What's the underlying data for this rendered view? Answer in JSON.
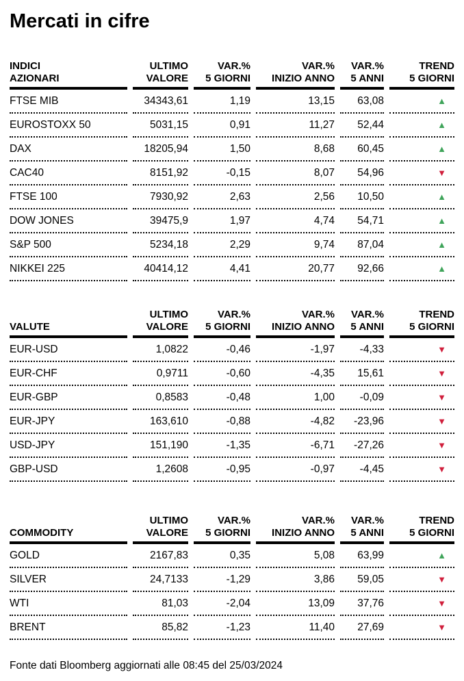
{
  "page": {
    "title": "Mercati in cifre",
    "footer": "Fonte dati Bloomberg aggiornati alle 08:45 del 25/03/2024"
  },
  "colors": {
    "up": "#3fa45a",
    "down": "#d01f3c"
  },
  "icons": {
    "trend_up": "▲",
    "trend_down": "▼"
  },
  "tables": [
    {
      "id": "indici-azionari",
      "header_line1": [
        "INDICI",
        "ULTIMO",
        "VAR.%",
        "VAR.%",
        "VAR.%",
        "TREND"
      ],
      "header_line2": [
        "AZIONARI",
        "VALORE",
        "5 GIORNI",
        "INIZIO ANNO",
        "5 ANNI",
        "5 GIORNI"
      ],
      "rows": [
        {
          "name": "FTSE MIB",
          "last": "34343,61",
          "var_5d": "1,19",
          "var_ytd": "13,15",
          "var_5y": "63,08",
          "trend": "up"
        },
        {
          "name": "EUROSTOXX 50",
          "last": "5031,15",
          "var_5d": "0,91",
          "var_ytd": "11,27",
          "var_5y": "52,44",
          "trend": "up"
        },
        {
          "name": "DAX",
          "last": "18205,94",
          "var_5d": "1,50",
          "var_ytd": "8,68",
          "var_5y": "60,45",
          "trend": "up"
        },
        {
          "name": "CAC40",
          "last": "8151,92",
          "var_5d": "-0,15",
          "var_ytd": "8,07",
          "var_5y": "54,96",
          "trend": "down"
        },
        {
          "name": "FTSE 100",
          "last": "7930,92",
          "var_5d": "2,63",
          "var_ytd": "2,56",
          "var_5y": "10,50",
          "trend": "up"
        },
        {
          "name": "DOW JONES",
          "last": "39475,9",
          "var_5d": "1,97",
          "var_ytd": "4,74",
          "var_5y": "54,71",
          "trend": "up"
        },
        {
          "name": "S&P 500",
          "last": "5234,18",
          "var_5d": "2,29",
          "var_ytd": "9,74",
          "var_5y": "87,04",
          "trend": "up"
        },
        {
          "name": "NIKKEI 225",
          "last": "40414,12",
          "var_5d": "4,41",
          "var_ytd": "20,77",
          "var_5y": "92,66",
          "trend": "up"
        }
      ]
    },
    {
      "id": "valute",
      "header_line1": [
        "",
        "ULTIMO",
        "VAR.%",
        "VAR.%",
        "VAR.%",
        "TREND"
      ],
      "header_line2": [
        "VALUTE",
        "VALORE",
        "5 GIORNI",
        "INIZIO ANNO",
        "5 ANNI",
        "5 GIORNI"
      ],
      "rows": [
        {
          "name": "EUR-USD",
          "last": "1,0822",
          "var_5d": "-0,46",
          "var_ytd": "-1,97",
          "var_5y": "-4,33",
          "trend": "down"
        },
        {
          "name": "EUR-CHF",
          "last": "0,9711",
          "var_5d": "-0,60",
          "var_ytd": "-4,35",
          "var_5y": "15,61",
          "trend": "down"
        },
        {
          "name": "EUR-GBP",
          "last": "0,8583",
          "var_5d": "-0,48",
          "var_ytd": "1,00",
          "var_5y": "-0,09",
          "trend": "down"
        },
        {
          "name": "EUR-JPY",
          "last": "163,610",
          "var_5d": "-0,88",
          "var_ytd": "-4,82",
          "var_5y": "-23,96",
          "trend": "down"
        },
        {
          "name": "USD-JPY",
          "last": "151,190",
          "var_5d": "-1,35",
          "var_ytd": "-6,71",
          "var_5y": "-27,26",
          "trend": "down"
        },
        {
          "name": "GBP-USD",
          "last": "1,2608",
          "var_5d": "-0,95",
          "var_ytd": "-0,97",
          "var_5y": "-4,45",
          "trend": "down"
        }
      ]
    },
    {
      "id": "commodity",
      "header_line1": [
        "",
        "ULTIMO",
        "VAR.%",
        "VAR.%",
        "VAR.%",
        "TREND"
      ],
      "header_line2": [
        "COMMODITY",
        "VALORE",
        "5 GIORNI",
        "INIZIO ANNO",
        "5 ANNI",
        "5 GIORNI"
      ],
      "rows": [
        {
          "name": "GOLD",
          "last": "2167,83",
          "var_5d": "0,35",
          "var_ytd": "5,08",
          "var_5y": "63,99",
          "trend": "up"
        },
        {
          "name": "SILVER",
          "last": "24,7133",
          "var_5d": "-1,29",
          "var_ytd": "3,86",
          "var_5y": "59,05",
          "trend": "down"
        },
        {
          "name": "WTI",
          "last": "81,03",
          "var_5d": "-2,04",
          "var_ytd": "13,09",
          "var_5y": "37,76",
          "trend": "down"
        },
        {
          "name": "BRENT",
          "last": "85,82",
          "var_5d": "-1,23",
          "var_ytd": "11,40",
          "var_5y": "27,69",
          "trend": "down"
        }
      ]
    }
  ]
}
